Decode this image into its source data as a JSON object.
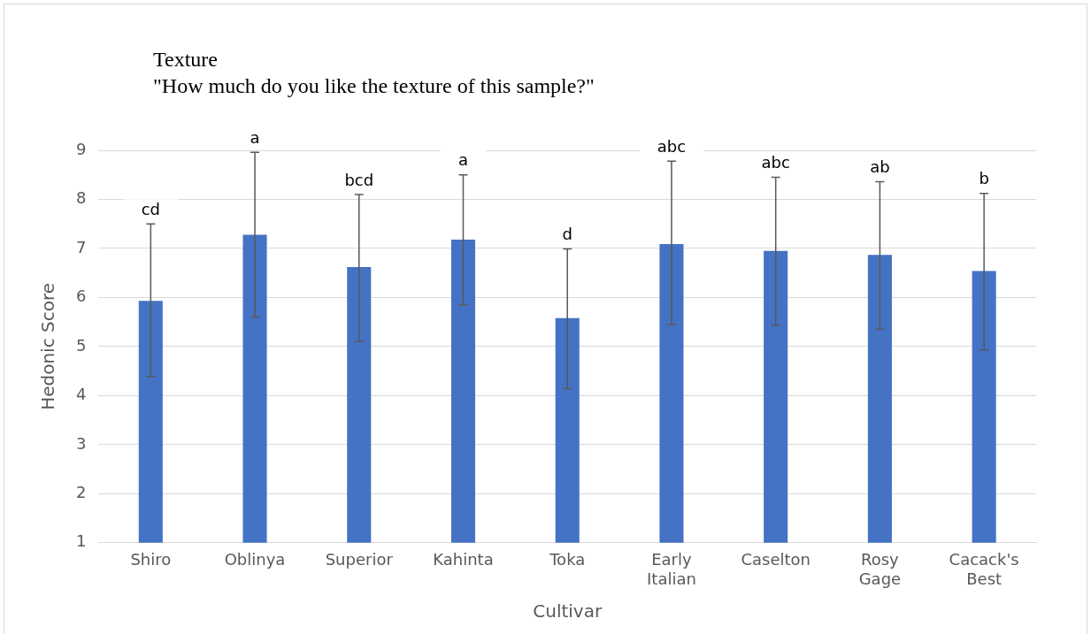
{
  "chart_data": {
    "type": "bar",
    "title": "Texture",
    "subtitle": "\"How much do you like the texture of this sample?\"",
    "xlabel": "Cultivar",
    "ylabel": "Hedonic Score",
    "categories": [
      "Shiro",
      "Oblinya",
      "Superior",
      "Kahinta",
      "Toka",
      "Early Italian",
      "Caselton",
      "Rosy Gage",
      "Cacack's Best"
    ],
    "values": [
      5.93,
      7.28,
      6.62,
      7.18,
      5.58,
      7.09,
      6.95,
      6.87,
      6.54
    ],
    "errors": [
      [
        4.39,
        7.5
      ],
      [
        5.6,
        8.96
      ],
      [
        5.1,
        8.1
      ],
      [
        5.85,
        8.5
      ],
      [
        4.14,
        6.99
      ],
      [
        5.45,
        8.78
      ],
      [
        5.43,
        8.45
      ],
      [
        5.35,
        8.36
      ],
      [
        4.93,
        8.12
      ]
    ],
    "color": "#4472c4",
    "ylim": [
      1,
      9
    ],
    "yticks": [
      1,
      2,
      3,
      4,
      5,
      6,
      7,
      8,
      9
    ],
    "grid": "y",
    "legend": false,
    "annotations": [
      {
        "text": "cd",
        "x": "Shiro",
        "y": 7.5
      },
      {
        "text": "a",
        "x": "Oblinya",
        "y": 8.96
      },
      {
        "text": "bcd",
        "x": "Superior",
        "y": 8.1
      },
      {
        "text": "a",
        "x": "Kahinta",
        "y": 8.5
      },
      {
        "text": "d",
        "x": "Toka",
        "y": 6.99
      },
      {
        "text": "abc",
        "x": "Early Italian",
        "y": 8.78
      },
      {
        "text": "abc",
        "x": "Caselton",
        "y": 8.45
      },
      {
        "text": "ab",
        "x": "Rosy Gage",
        "y": 8.36
      },
      {
        "text": "b",
        "x": "Cacack's Best",
        "y": 8.12
      }
    ]
  }
}
